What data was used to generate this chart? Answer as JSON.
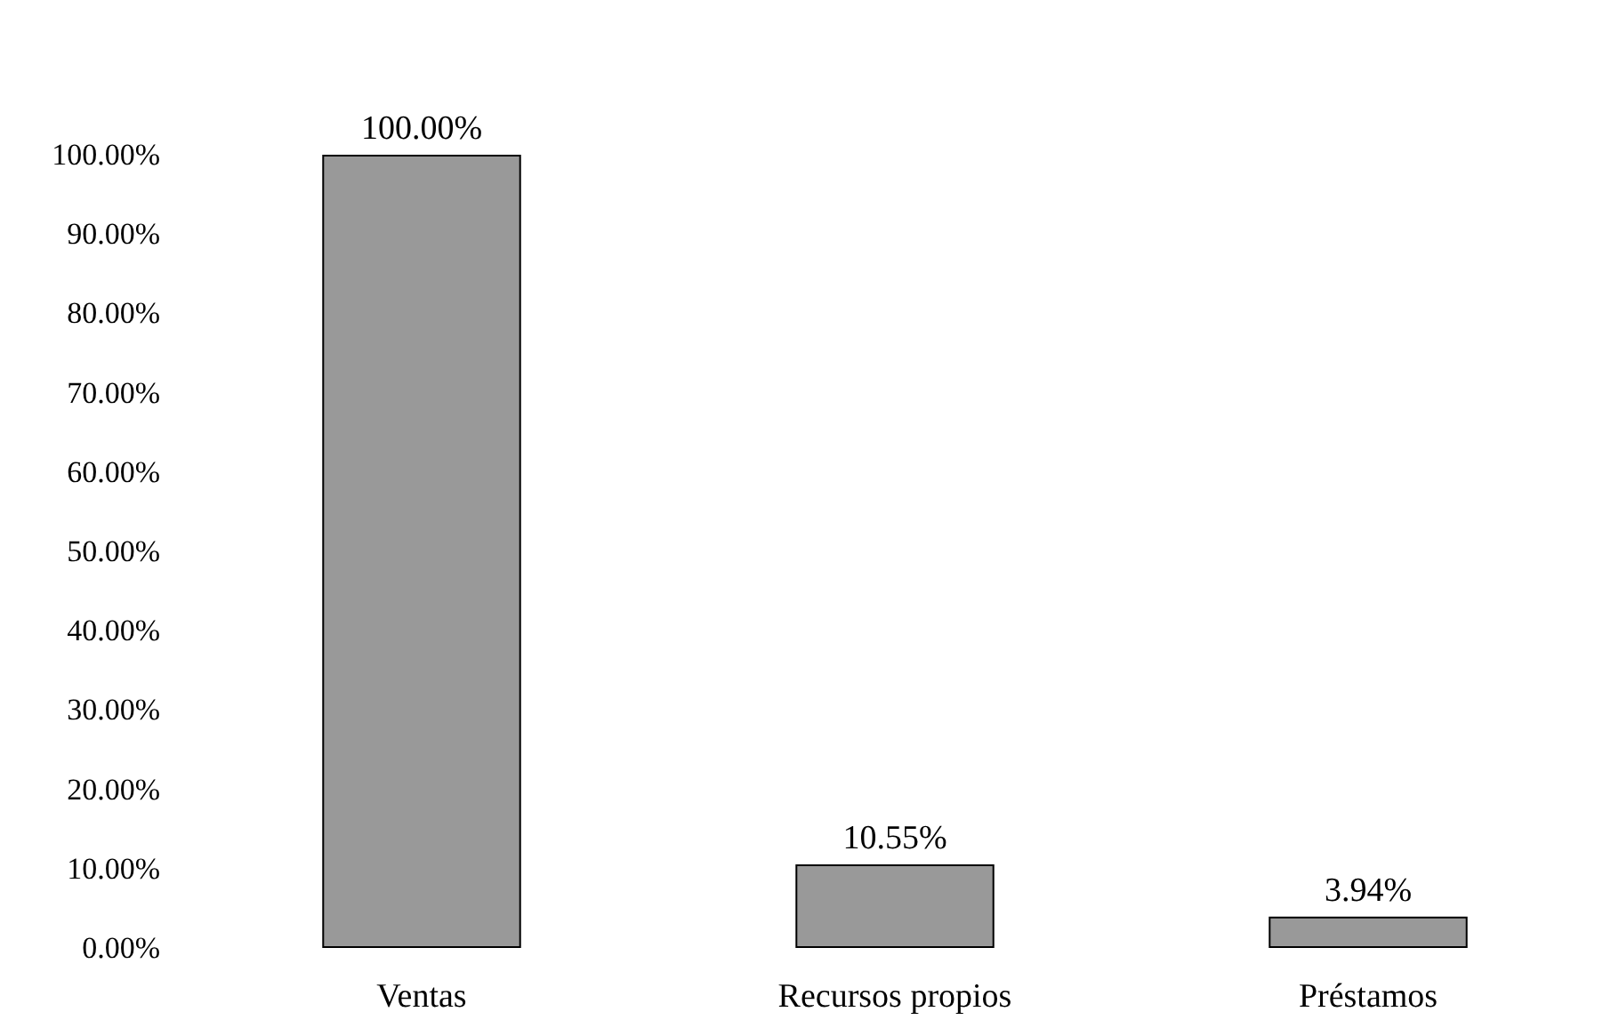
{
  "chart_data": {
    "type": "bar",
    "categories": [
      "Ventas",
      "Recursos propios",
      "Préstamos"
    ],
    "values": [
      100,
      10.55,
      3.94
    ],
    "value_labels": [
      "100.00%",
      "10.55%",
      "3.94%"
    ],
    "color": "#999999",
    "ylim": [
      0,
      100
    ],
    "yticks": [
      {
        "value": 0,
        "label": "0.00%"
      },
      {
        "value": 10,
        "label": "10.00%"
      },
      {
        "value": 20,
        "label": "20.00%"
      },
      {
        "value": 30,
        "label": "30.00%"
      },
      {
        "value": 40,
        "label": "40.00%"
      },
      {
        "value": 50,
        "label": "50.00%"
      },
      {
        "value": 60,
        "label": "60.00%"
      },
      {
        "value": 70,
        "label": "70.00%"
      },
      {
        "value": 80,
        "label": "80.00%"
      },
      {
        "value": 90,
        "label": "90.00%"
      },
      {
        "value": 100,
        "label": "100.00%"
      }
    ],
    "grid": false
  }
}
